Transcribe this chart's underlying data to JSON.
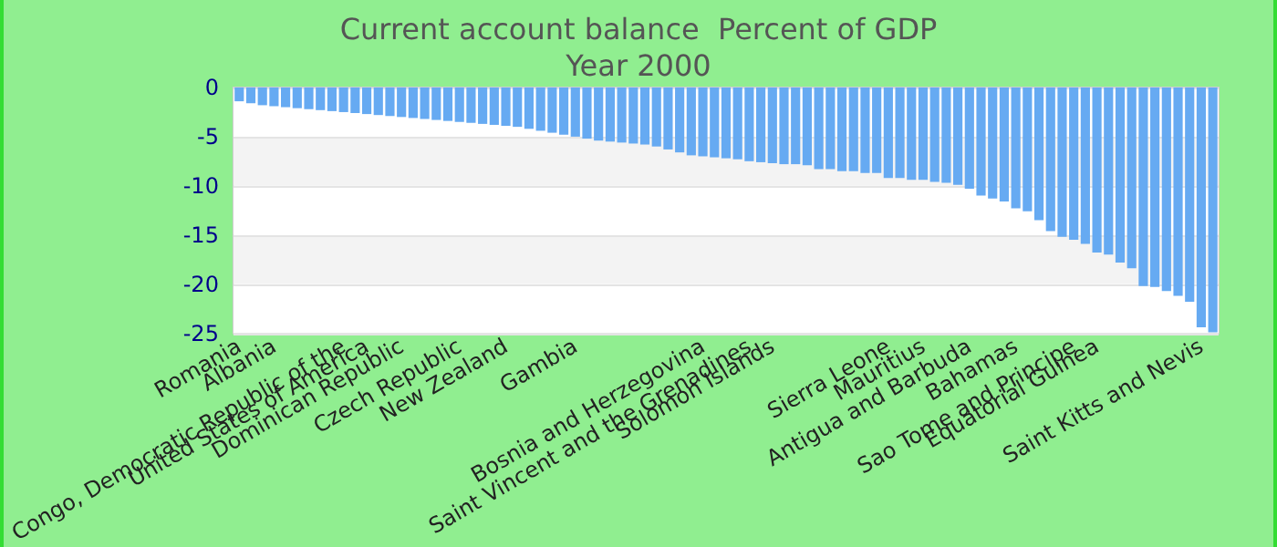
{
  "chart_data": {
    "type": "bar",
    "title": "Current account balance  Percent of GDP",
    "subtitle": "Year 2000",
    "categories": [
      "Romania",
      null,
      null,
      "Albania",
      null,
      null,
      null,
      null,
      null,
      "Congo, Democratic Republic of the",
      null,
      "United States of America",
      null,
      null,
      "Dominican Republic",
      null,
      null,
      null,
      null,
      "Czech Republic",
      null,
      null,
      null,
      "New Zealand",
      null,
      null,
      null,
      null,
      null,
      "Gambia",
      null,
      null,
      null,
      null,
      null,
      null,
      null,
      null,
      null,
      null,
      "Bosnia and Herzegovina",
      null,
      null,
      null,
      "Saint Vincent and the Grenadines",
      null,
      "Solomon Islands",
      null,
      null,
      null,
      null,
      null,
      null,
      null,
      null,
      null,
      "Sierra Leone",
      null,
      null,
      "Mauritius",
      null,
      null,
      null,
      "Antigua and Barbuda",
      null,
      null,
      null,
      "Bahamas",
      null,
      null,
      null,
      null,
      "Sao Tome and Principe",
      null,
      "Equatorial Guinea",
      null,
      null,
      null,
      null,
      null,
      null,
      null,
      null,
      "Saint Kitts and Nevis",
      null
    ],
    "values": [
      -1.4,
      -1.6,
      -1.8,
      -1.9,
      -2.0,
      -2.1,
      -2.2,
      -2.3,
      -2.4,
      -2.5,
      -2.6,
      -2.7,
      -2.8,
      -2.9,
      -3.0,
      -3.1,
      -3.2,
      -3.3,
      -3.4,
      -3.5,
      -3.6,
      -3.7,
      -3.8,
      -3.9,
      -4.0,
      -4.2,
      -4.4,
      -4.6,
      -4.8,
      -5.0,
      -5.2,
      -5.4,
      -5.5,
      -5.6,
      -5.7,
      -5.8,
      -6.0,
      -6.3,
      -6.6,
      -6.9,
      -7.0,
      -7.1,
      -7.2,
      -7.3,
      -7.5,
      -7.6,
      -7.7,
      -7.8,
      -7.8,
      -7.9,
      -8.3,
      -8.3,
      -8.5,
      -8.5,
      -8.7,
      -8.7,
      -9.2,
      -9.2,
      -9.4,
      -9.4,
      -9.6,
      -9.7,
      -9.9,
      -10.3,
      -11.0,
      -11.3,
      -11.6,
      -12.3,
      -12.6,
      -13.5,
      -14.6,
      -15.2,
      -15.5,
      -15.9,
      -16.8,
      -17.0,
      -17.8,
      -18.4,
      -20.2,
      -20.3,
      -20.7,
      -21.2,
      -21.8,
      -24.4,
      -24.9
    ],
    "color": "#66aaf2",
    "ylim": [
      -25,
      0
    ],
    "yticks": [
      -25,
      -20,
      -15,
      -10,
      -5,
      0
    ],
    "grid": "y"
  }
}
